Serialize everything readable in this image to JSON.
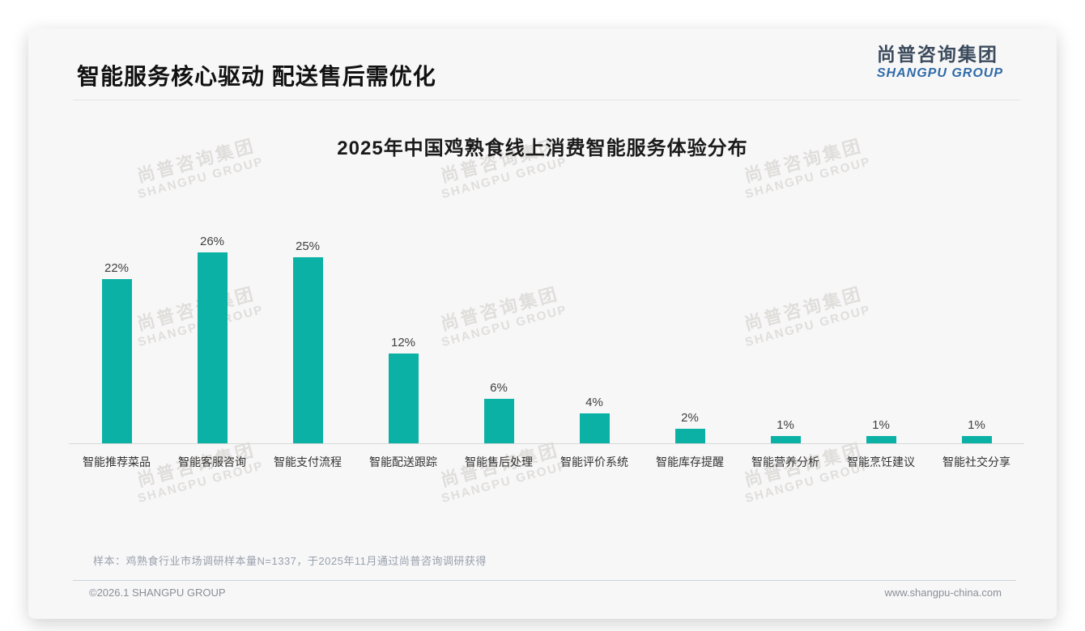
{
  "page": {
    "header": {
      "title": "智能服务核心驱动 配送售后需优化",
      "logo": {
        "cn": "尚普咨询集团",
        "en": "SHANGPU GROUP"
      }
    },
    "watermark": {
      "cn": "尚普咨询集团",
      "en": "SHANGPU GROUP"
    },
    "footnote": "样本：鸡熟食行业市场调研样本量N=1337，于2025年11月通过尚普咨询调研获得",
    "footer": {
      "copyright": "©2026.1 SHANGPU GROUP",
      "website": "www.shangpu-china.com"
    },
    "colors": {
      "bar": "#0bb1a5",
      "logo_cn": "#3c4b5c",
      "logo_en": "#2f6ba8"
    }
  },
  "chart_data": {
    "type": "bar",
    "title": "2025年中国鸡熟食线上消费智能服务体验分布",
    "categories": [
      "智能推荐菜品",
      "智能客服咨询",
      "智能支付流程",
      "智能配送跟踪",
      "智能售后处理",
      "智能评价系统",
      "智能库存提醒",
      "智能营养分析",
      "智能烹饪建议",
      "智能社交分享"
    ],
    "values": [
      22,
      26,
      25,
      12,
      6,
      4,
      2,
      1,
      1,
      1
    ],
    "value_labels": [
      "22%",
      "26%",
      "25%",
      "12%",
      "6%",
      "4%",
      "2%",
      "1%",
      "1%",
      "1%"
    ],
    "unit": "%",
    "bar_color": "#0bb1a5",
    "xlabel": "",
    "ylabel": "",
    "ylim": [
      0,
      28
    ],
    "grid": false,
    "legend": null
  }
}
